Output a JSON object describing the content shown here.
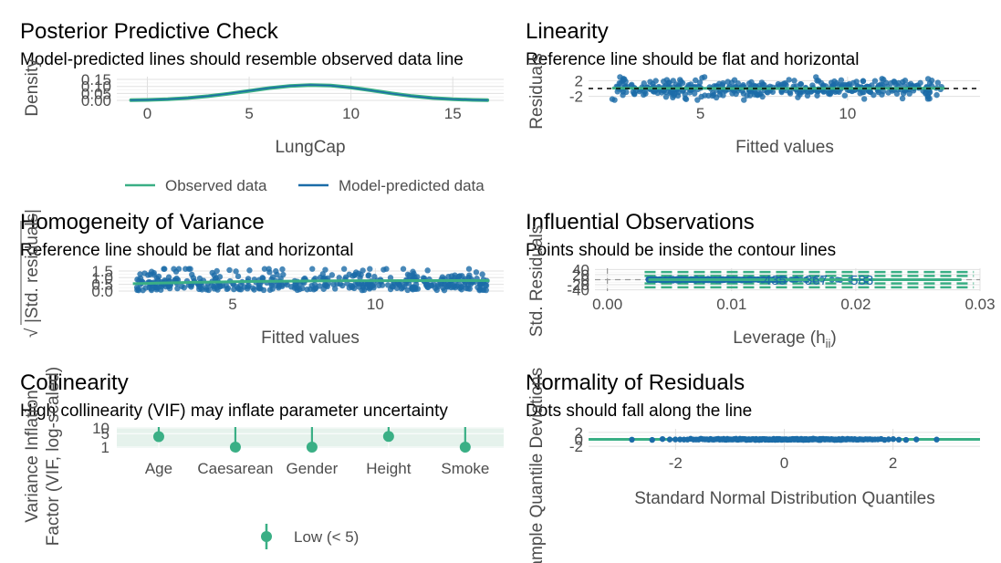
{
  "colors": {
    "observed": "#3aaf85",
    "predicted": "#1b6ca8",
    "reference": "#000000",
    "contour": "#3aaf85",
    "vif_low": "#3aaf85",
    "vif_band": "#cfe8dd"
  },
  "chart_data": [
    {
      "id": "ppc",
      "type": "line",
      "title": "Posterior Predictive Check",
      "subtitle": "Model-predicted lines should resemble observed data line",
      "xlabel": "LungCap",
      "ylabel": "Density",
      "xlim": [
        -1.5,
        17.5
      ],
      "ylim": [
        0,
        0.17
      ],
      "xticks": [
        "0",
        "5",
        "10",
        "15"
      ],
      "yticks": [
        "0.00",
        "0.05",
        "0.10",
        "0.15"
      ],
      "legend": [
        "Observed data",
        "Model-predicted data"
      ],
      "series": [
        {
          "name": "Observed data",
          "x": [
            -0.8,
            0,
            1,
            2,
            3,
            4,
            5,
            6,
            7,
            8,
            9,
            10,
            11,
            12,
            13,
            14,
            15,
            16,
            16.7
          ],
          "y": [
            0.001,
            0.003,
            0.008,
            0.017,
            0.03,
            0.048,
            0.068,
            0.088,
            0.103,
            0.11,
            0.106,
            0.092,
            0.072,
            0.05,
            0.031,
            0.017,
            0.008,
            0.003,
            0.001
          ]
        },
        {
          "name": "Model-predicted data",
          "x": [
            -0.8,
            0,
            1,
            2,
            3,
            4,
            5,
            6,
            7,
            8,
            9,
            10,
            11,
            12,
            13,
            14,
            15,
            16,
            16.7
          ],
          "y": [
            0.001,
            0.003,
            0.008,
            0.017,
            0.031,
            0.049,
            0.069,
            0.089,
            0.104,
            0.111,
            0.106,
            0.091,
            0.071,
            0.049,
            0.03,
            0.016,
            0.008,
            0.003,
            0.001
          ]
        }
      ]
    },
    {
      "id": "linearity",
      "type": "scatter",
      "title": "Linearity",
      "subtitle": "Reference line should be flat and horizontal",
      "xlabel": "Fitted values",
      "ylabel": "Residuals",
      "xlim": [
        1.2,
        14.5
      ],
      "ylim": [
        -3,
        3
      ],
      "xticks": [
        "5",
        "10"
      ],
      "yticks": [
        "-2",
        "2"
      ],
      "reference_y": 0
    },
    {
      "id": "homogeneity",
      "type": "scatter",
      "title": "Homogeneity of Variance",
      "subtitle": "Reference line should be flat and horizontal",
      "xlabel": "Fitted values",
      "ylabel": "|Std. residuals|",
      "ylabel_prefix": "√",
      "xlim": [
        1,
        14.5
      ],
      "ylim": [
        0,
        1.7
      ],
      "xticks": [
        "5",
        "10"
      ],
      "yticks": [
        "0.0",
        "0.5",
        "1.0",
        "1.5"
      ]
    },
    {
      "id": "influential",
      "type": "scatter",
      "title": "Influential Observations",
      "subtitle": "Points should be inside the contour lines",
      "xlabel": "Leverage (h",
      "xlabel_sub": "ii",
      "xlabel_suffix": ")",
      "ylabel": "Std. Residuals",
      "xlim": [
        -0.001,
        0.03
      ],
      "ylim": [
        -45,
        45
      ],
      "xticks": [
        "0.00",
        "0.01",
        "0.02",
        "0.03"
      ],
      "yticks": [
        "-40",
        "-20",
        "0",
        "20",
        "40"
      ],
      "labels": [
        "435",
        "367",
        "583"
      ]
    },
    {
      "id": "collinearity",
      "type": "scatter",
      "title": "Collinearity",
      "subtitle": "High collinearity (VIF) may inflate parameter uncertainty",
      "xlabel": "",
      "ylabel": "Variance Inflation Factor (VIF, log-scaled)",
      "ylabel_lines": [
        "Variance Inflation",
        "Factor (VIF, log-scaled)"
      ],
      "categories": [
        "Age",
        "Caesarean",
        "Gender",
        "Height",
        "Smoke"
      ],
      "values": [
        3.5,
        1.0,
        1.0,
        3.6,
        1.0
      ],
      "ci_high": [
        3.6,
        10.5,
        1.05,
        3.7,
        1.05
      ],
      "ylim": [
        0.9,
        11
      ],
      "yticks": [
        "1",
        "5",
        "10"
      ],
      "legend": [
        "Low (< 5)"
      ]
    },
    {
      "id": "normality",
      "type": "scatter",
      "title": "Normality of Residuals",
      "subtitle": "Dots should fall along the line",
      "xlabel": "Standard Normal Distribution Quantiles",
      "ylabel": "Sample Quantile Deviations",
      "xlim": [
        -3.6,
        3.6
      ],
      "ylim": [
        -3,
        3
      ],
      "xticks": [
        "-2",
        "0",
        "2"
      ],
      "yticks": [
        "-2",
        "0",
        "2"
      ]
    }
  ]
}
